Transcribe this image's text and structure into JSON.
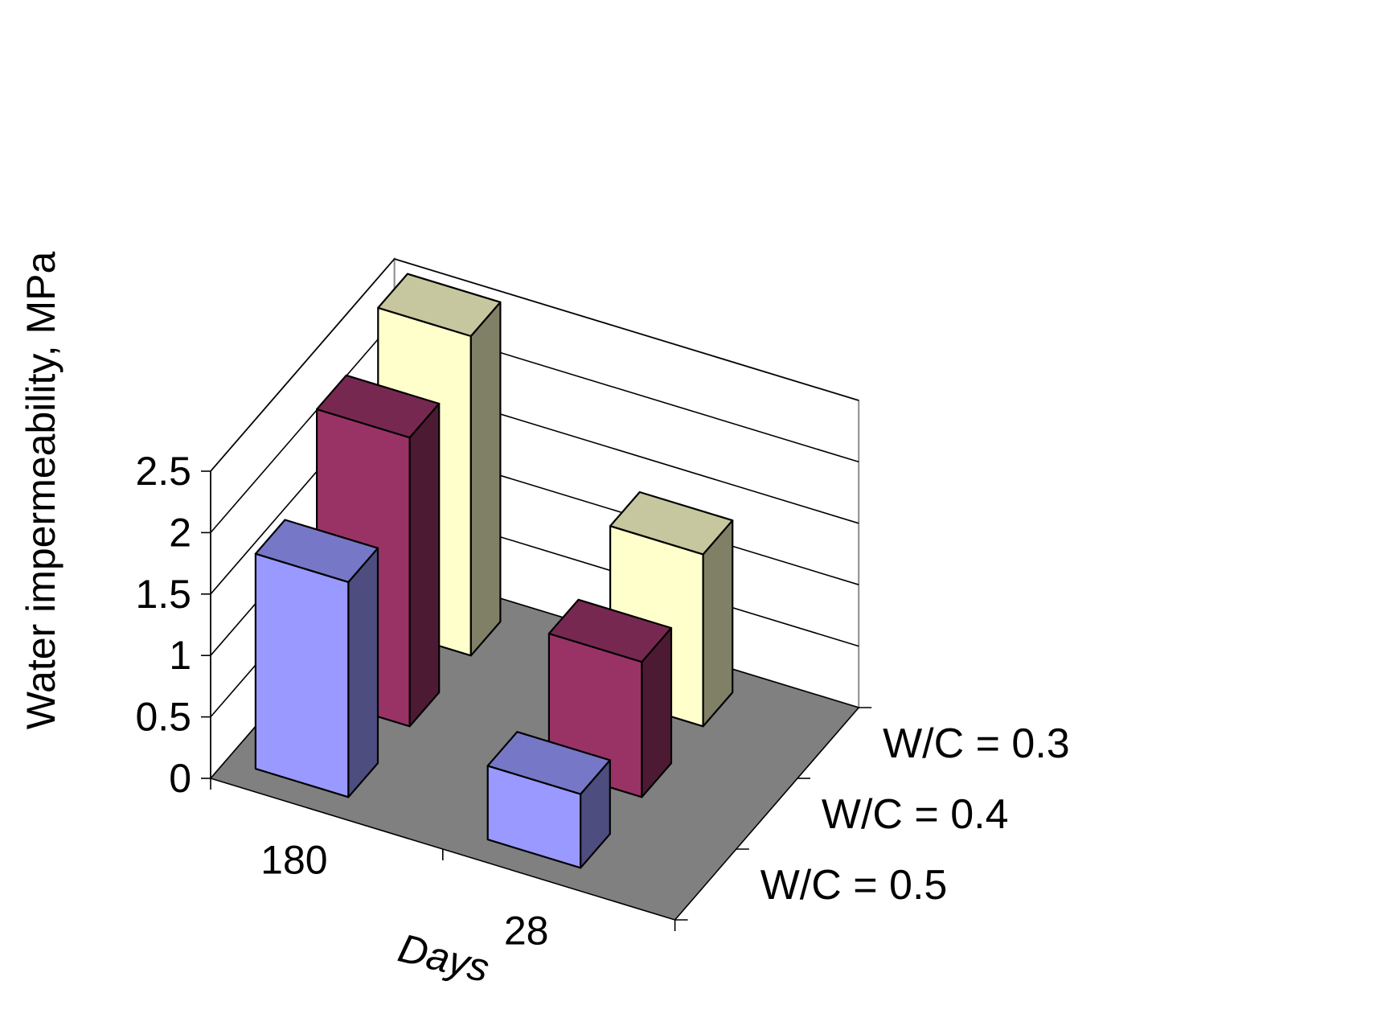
{
  "chart_data": {
    "type": "bar",
    "subtype": "3d-column",
    "title": "",
    "ylabel": "Water impermeability, MPa",
    "xlabel": "Days",
    "ylim": [
      0,
      2.5
    ],
    "yticks": [
      "0",
      "0.5",
      "1",
      "1.5",
      "2",
      "2.5"
    ],
    "categories": [
      "180",
      "28"
    ],
    "grid": true,
    "series": [
      {
        "name": "W/C = 0.5",
        "values": [
          1.75,
          0.6
        ],
        "color": "#9999ff"
      },
      {
        "name": "W/C = 0.4",
        "values": [
          2.35,
          1.1
        ],
        "color": "#993366"
      },
      {
        "name": "W/C = 0.3",
        "values": [
          2.6,
          1.4
        ],
        "color": "#ffffcc"
      }
    ],
    "floor_color": "#808080"
  }
}
